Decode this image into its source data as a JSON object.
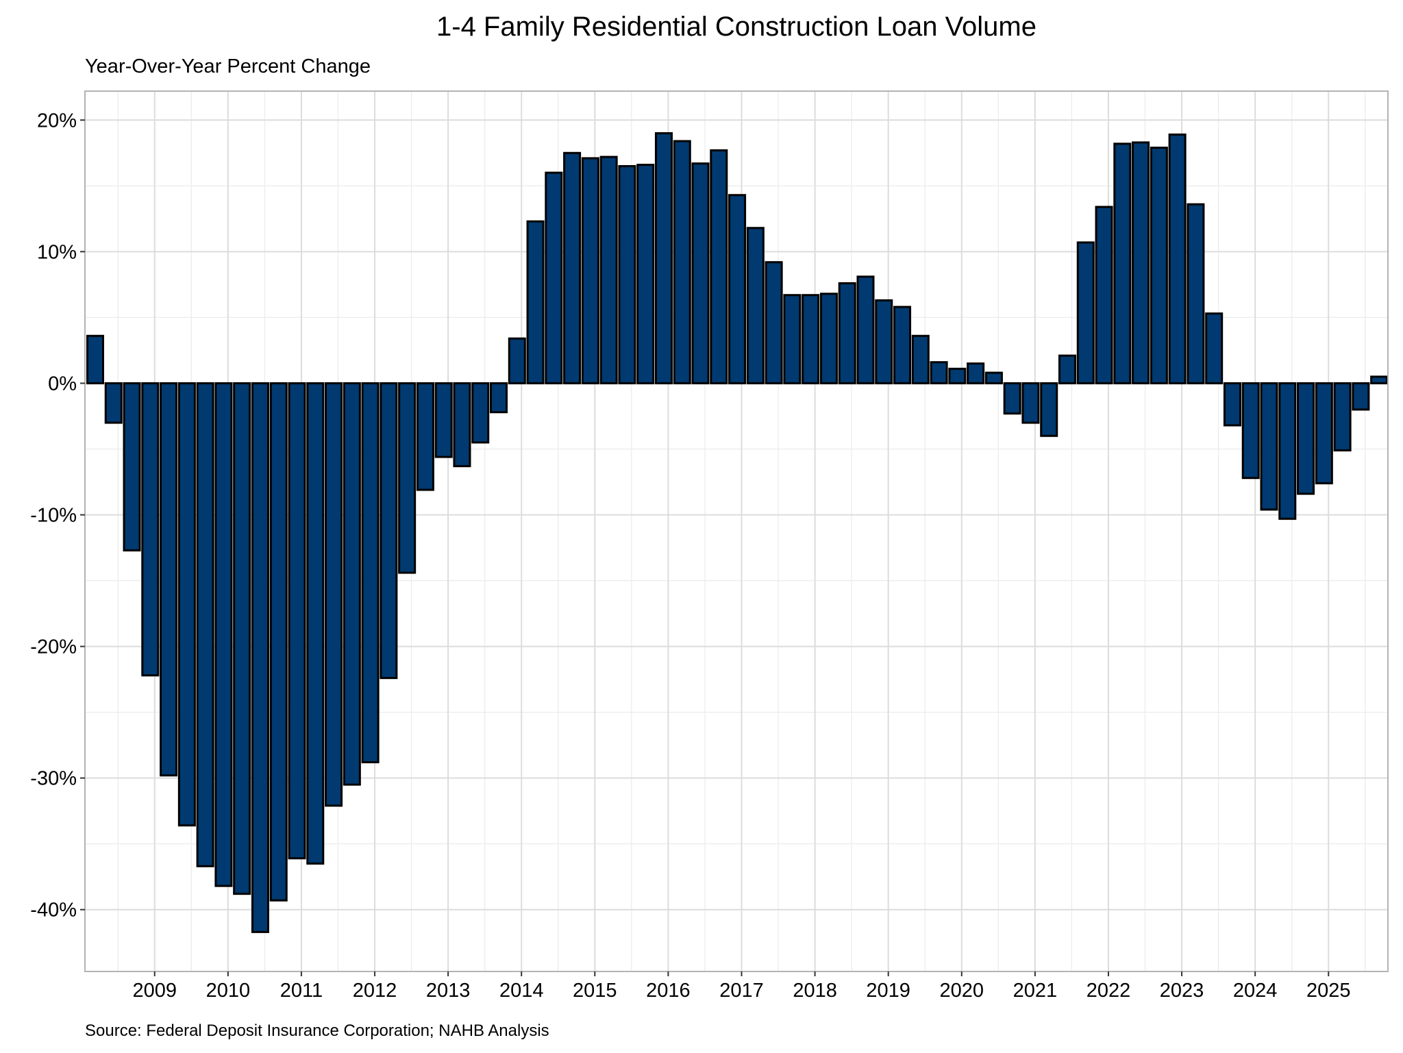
{
  "chart_data": {
    "type": "bar",
    "title": "1-4 Family Residential Construction Loan Volume",
    "subtitle": "Year-Over-Year Percent Change",
    "caption": "Source: Federal Deposit Insurance Corporation; NAHB Analysis",
    "xlabel": "",
    "ylabel": "",
    "ylim": [
      -44.7,
      22.2
    ],
    "xlim": [
      2008.05,
      2025.81
    ],
    "grid": true,
    "legend": "none",
    "bar_color": "#003A70",
    "bar_outline": "#000000",
    "y_ticks": [
      20,
      10,
      0,
      -10,
      -20,
      -30,
      -40
    ],
    "y_tick_labels": [
      "20%",
      "10%",
      "0%",
      "-10%",
      "-20%",
      "-30%",
      "-40%"
    ],
    "x_ticks": [
      2009,
      2010,
      2011,
      2012,
      2013,
      2014,
      2015,
      2016,
      2017,
      2018,
      2019,
      2020,
      2021,
      2022,
      2023,
      2024,
      2025
    ],
    "x_tick_labels": [
      "2009",
      "2010",
      "2011",
      "2012",
      "2013",
      "2014",
      "2015",
      "2016",
      "2017",
      "2018",
      "2019",
      "2020",
      "2021",
      "2022",
      "2023",
      "2024",
      "2025"
    ],
    "start": {
      "year": 2008,
      "quarter": 1
    },
    "values": [
      3.6,
      -3.0,
      -12.7,
      -22.2,
      -29.8,
      -33.6,
      -36.7,
      -38.2,
      -38.8,
      -41.7,
      -39.3,
      -36.1,
      -36.5,
      -32.1,
      -30.5,
      -28.8,
      -22.4,
      -14.4,
      -8.1,
      -5.6,
      -6.3,
      -4.5,
      -2.2,
      3.4,
      12.3,
      16.0,
      17.5,
      17.1,
      17.2,
      16.5,
      16.6,
      19.0,
      18.4,
      16.7,
      17.7,
      14.3,
      11.8,
      9.2,
      6.7,
      6.7,
      6.8,
      7.6,
      8.1,
      6.3,
      5.8,
      3.6,
      1.6,
      1.1,
      1.5,
      0.8,
      -2.3,
      -3.0,
      -4.0,
      2.1,
      10.7,
      13.4,
      18.2,
      18.3,
      17.9,
      18.9,
      13.6,
      5.3,
      -3.2,
      -7.2,
      -9.6,
      -10.3,
      -8.4,
      -7.6,
      -5.1,
      -2.0,
      0.5
    ]
  }
}
